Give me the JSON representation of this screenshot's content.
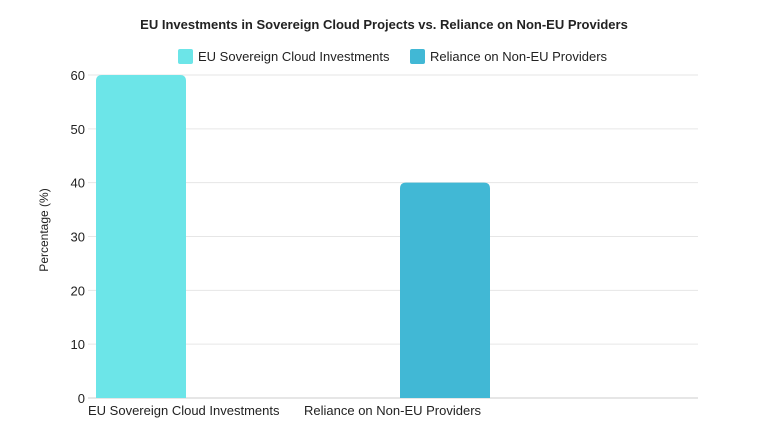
{
  "chart_data": {
    "type": "bar",
    "title": "EU Investments in Sovereign Cloud Projects vs. Reliance on Non-EU Providers",
    "categories": [
      "EU Sovereign Cloud Investments",
      "Reliance on Non-EU Providers"
    ],
    "series": [
      {
        "name": "EU Sovereign Cloud Investments",
        "values": [
          60,
          null
        ],
        "color": "#6ce5e8"
      },
      {
        "name": "Reliance on Non-EU Providers",
        "values": [
          null,
          40
        ],
        "color": "#41b8d5"
      }
    ],
    "xlabel": "",
    "ylabel": "Percentage (%)",
    "ylim": [
      0,
      60
    ],
    "yticks": [
      "0",
      "10",
      "20",
      "30",
      "40",
      "50",
      "60"
    ],
    "grid": true,
    "legend": "top-center"
  }
}
